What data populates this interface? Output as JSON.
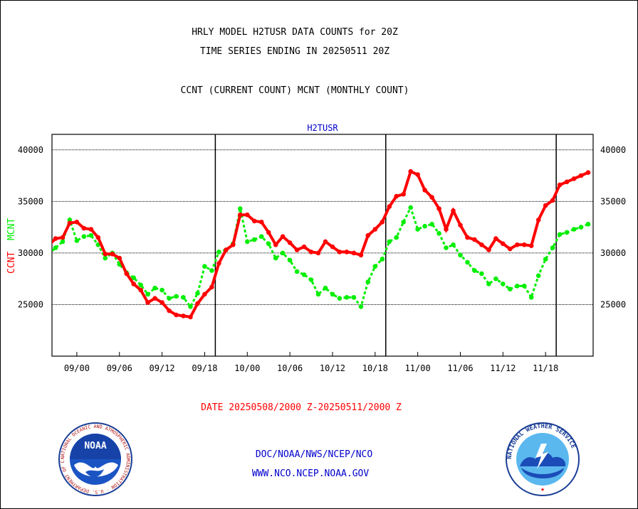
{
  "header": {
    "title_line1": "HRLY MODEL H2TUSR DATA COUNTS for 20Z",
    "title_line2": "TIME SERIES ENDING IN 20250511 20Z",
    "subtitle": "CCNT (CURRENT COUNT) MCNT (MONTHLY COUNT)"
  },
  "footer": {
    "date_range": "DATE 20250508/2000 Z-20250511/2000 Z",
    "org": "DOC/NOAA/NWS/NCEP/NCO",
    "url": "WWW.NCO.NCEP.NOAA.GOV"
  },
  "logos": {
    "left": {
      "icon": "noaa-logo",
      "text": "NOAA",
      "ring_text": "NATIONAL OCEANIC AND ATMOSPHERIC ADMINISTRATION · U.S. DEPARTMENT OF COMMERCE"
    },
    "right": {
      "icon": "nws-logo",
      "ring_text": "NATIONAL WEATHER SERVICE"
    }
  },
  "colors": {
    "ccnt": "#ff0000",
    "mcnt": "#00ee00",
    "label_blue": "#0000cc"
  },
  "chart_data": {
    "type": "line",
    "title": "H2TUSR",
    "ylabel_left_parts": [
      {
        "text": "CCNT",
        "color": "#ff0000"
      },
      {
        "text": "MCNT",
        "color": "#00ee00"
      }
    ],
    "ylim": [
      20000,
      41500
    ],
    "yticks": [
      25000,
      30000,
      35000,
      40000
    ],
    "ytick_labels": [
      "25000",
      "30000",
      "35000",
      "40000"
    ],
    "x_range": [
      -3.5,
      72.7
    ],
    "xticks": [
      {
        "x": 0,
        "label": "09/00"
      },
      {
        "x": 6,
        "label": "09/06"
      },
      {
        "x": 12,
        "label": "09/12"
      },
      {
        "x": 18,
        "label": "09/18"
      },
      {
        "x": 24,
        "label": "10/00"
      },
      {
        "x": 30,
        "label": "10/06"
      },
      {
        "x": 36,
        "label": "10/12"
      },
      {
        "x": 42,
        "label": "10/18"
      },
      {
        "x": 48,
        "label": "11/00"
      },
      {
        "x": 54,
        "label": "11/06"
      },
      {
        "x": 60,
        "label": "11/12"
      },
      {
        "x": 66,
        "label": "11/18"
      }
    ],
    "day_boundaries": [
      19.5,
      43.5,
      67.5
    ],
    "grid": true,
    "series": [
      {
        "name": "CCNT",
        "color": "#ff0000",
        "x": [
          -4,
          -3,
          -2,
          -1,
          0,
          1,
          2,
          3,
          4,
          5,
          6,
          7,
          8,
          9,
          10,
          11,
          12,
          13,
          14,
          15,
          16,
          17,
          18,
          19,
          20,
          21,
          22,
          23,
          24,
          25,
          26,
          27,
          28,
          29,
          30,
          31,
          32,
          33,
          34,
          35,
          36,
          37,
          38,
          39,
          40,
          41,
          42,
          43,
          44,
          45,
          46,
          47,
          48,
          49,
          50,
          51,
          52,
          53,
          54,
          55,
          56,
          57,
          58,
          59,
          60,
          61,
          62,
          63,
          64,
          65,
          66,
          67,
          68,
          69,
          70,
          71,
          72
        ],
        "values": [
          30700,
          31400,
          31500,
          32900,
          33000,
          32400,
          32300,
          31500,
          29900,
          29900,
          29500,
          28000,
          27000,
          26400,
          25200,
          25600,
          25200,
          24400,
          24000,
          23900,
          23800,
          25100,
          26000,
          26700,
          29000,
          30300,
          30800,
          33700,
          33700,
          33100,
          33000,
          32000,
          30800,
          31600,
          31000,
          30300,
          30600,
          30100,
          30000,
          31100,
          30600,
          30100,
          30100,
          30000,
          29800,
          31700,
          32300,
          33000,
          34500,
          35500,
          35700,
          37900,
          37600,
          36100,
          35400,
          34300,
          32300,
          34100,
          32700,
          31500,
          31300,
          30800,
          30300,
          31400,
          30900,
          30400,
          30800,
          30800,
          30700,
          33200,
          34600,
          35100,
          36600,
          36900,
          37200,
          37500,
          37800
        ]
      },
      {
        "name": "MCNT",
        "color": "#00ee00",
        "x": [
          -4,
          -3,
          -2,
          -1,
          0,
          1,
          2,
          3,
          4,
          5,
          6,
          7,
          8,
          9,
          10,
          11,
          12,
          13,
          14,
          15,
          16,
          17,
          18,
          19,
          20,
          21,
          22,
          23,
          24,
          25,
          26,
          27,
          28,
          29,
          30,
          31,
          32,
          33,
          34,
          35,
          36,
          37,
          38,
          39,
          40,
          41,
          42,
          43,
          44,
          45,
          46,
          47,
          48,
          49,
          50,
          51,
          52,
          53,
          54,
          55,
          56,
          57,
          58,
          59,
          60,
          61,
          62,
          63,
          64,
          65,
          66,
          67,
          68,
          69,
          70,
          71,
          72
        ],
        "values": [
          29900,
          30500,
          31100,
          33200,
          31200,
          31600,
          31700,
          30800,
          29500,
          30000,
          28900,
          28100,
          27600,
          26900,
          26000,
          26600,
          26400,
          25600,
          25800,
          25700,
          24800,
          26100,
          28700,
          28300,
          30100,
          30300,
          30900,
          34300,
          31100,
          31300,
          31600,
          30900,
          29500,
          30000,
          29300,
          28200,
          27900,
          27400,
          26000,
          26600,
          26000,
          25600,
          25700,
          25700,
          24800,
          27200,
          28700,
          29400,
          31100,
          31500,
          33000,
          34400,
          32300,
          32600,
          32800,
          31900,
          30500,
          30800,
          29800,
          29100,
          28300,
          28000,
          27000,
          27500,
          27000,
          26500,
          26800,
          26800,
          25700,
          27800,
          29400,
          30500,
          31800,
          32000,
          32300,
          32500,
          32800
        ]
      }
    ]
  }
}
